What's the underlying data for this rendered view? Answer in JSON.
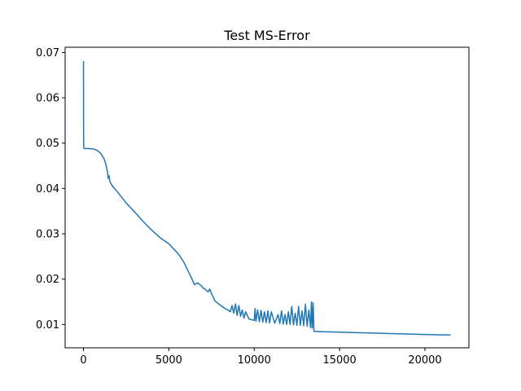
{
  "chart_data": {
    "type": "line",
    "title": "Test MS-Error",
    "xlabel": "",
    "ylabel": "",
    "xlim": [
      -1075,
      22575
    ],
    "ylim": [
      0.00485,
      0.07115
    ],
    "xticks": [
      0,
      5000,
      10000,
      15000,
      20000
    ],
    "xtick_labels": [
      "0",
      "5000",
      "10000",
      "15000",
      "20000"
    ],
    "yticks": [
      0.01,
      0.02,
      0.03,
      0.04,
      0.05,
      0.06,
      0.07
    ],
    "ytick_labels": [
      "0.01",
      "0.02",
      "0.03",
      "0.04",
      "0.05",
      "0.06",
      "0.07"
    ],
    "grid": false,
    "legend": "none",
    "colors": {
      "series": "#1f77b4"
    },
    "series": [
      {
        "values_x": [
          0,
          5,
          10,
          20,
          40,
          60,
          100,
          300,
          600,
          800,
          1000,
          1200,
          1300,
          1400,
          1450,
          1500,
          1550,
          1700,
          2000,
          2500,
          3000,
          3500,
          4000,
          4500,
          5000,
          5200,
          5500,
          5700,
          5900,
          6100,
          6300,
          6500,
          6700,
          6800,
          6900,
          7000,
          7100,
          7200,
          7300,
          7400,
          7500,
          7600,
          7700,
          8000,
          8300,
          8500,
          8600,
          8700,
          8800,
          8900,
          9000,
          9100,
          9200,
          9300,
          9400,
          9500,
          9700,
          10000,
          10050,
          10100,
          10200,
          10300,
          10400,
          10500,
          10600,
          10700,
          10800,
          10900,
          11000,
          11200,
          11400,
          11500,
          11600,
          11700,
          11800,
          11900,
          12000,
          12100,
          12200,
          12300,
          12400,
          12500,
          12600,
          12700,
          12800,
          12900,
          13000,
          13100,
          13200,
          13300,
          13350,
          13400,
          13450,
          13500,
          14000,
          15000,
          16000,
          17000,
          18000,
          19000,
          20000,
          21000,
          21500
        ],
        "values": [
          0.0681,
          0.055,
          0.0505,
          0.0489,
          0.0488,
          0.0488,
          0.0488,
          0.0488,
          0.0487,
          0.0484,
          0.0478,
          0.0466,
          0.0455,
          0.0438,
          0.0422,
          0.0428,
          0.0415,
          0.0405,
          0.0392,
          0.0368,
          0.0348,
          0.0327,
          0.0308,
          0.0291,
          0.0278,
          0.027,
          0.0258,
          0.0248,
          0.0236,
          0.022,
          0.0205,
          0.0188,
          0.0192,
          0.0188,
          0.0186,
          0.018,
          0.0179,
          0.0175,
          0.0172,
          0.0178,
          0.0168,
          0.016,
          0.0152,
          0.0143,
          0.0135,
          0.0131,
          0.0128,
          0.0142,
          0.0125,
          0.0145,
          0.012,
          0.0142,
          0.0118,
          0.0132,
          0.0114,
          0.0128,
          0.0112,
          0.0109,
          0.0135,
          0.0107,
          0.0132,
          0.0106,
          0.0131,
          0.0105,
          0.0128,
          0.0104,
          0.013,
          0.0103,
          0.0128,
          0.0103,
          0.0122,
          0.0102,
          0.013,
          0.0101,
          0.0122,
          0.01,
          0.0128,
          0.01,
          0.014,
          0.0099,
          0.0125,
          0.0098,
          0.014,
          0.0098,
          0.013,
          0.0097,
          0.0145,
          0.0096,
          0.0132,
          0.0093,
          0.015,
          0.0092,
          0.0148,
          0.0085,
          0.0084,
          0.0083,
          0.0082,
          0.0081,
          0.008,
          0.0079,
          0.0078,
          0.0077,
          0.0077
        ]
      }
    ]
  }
}
